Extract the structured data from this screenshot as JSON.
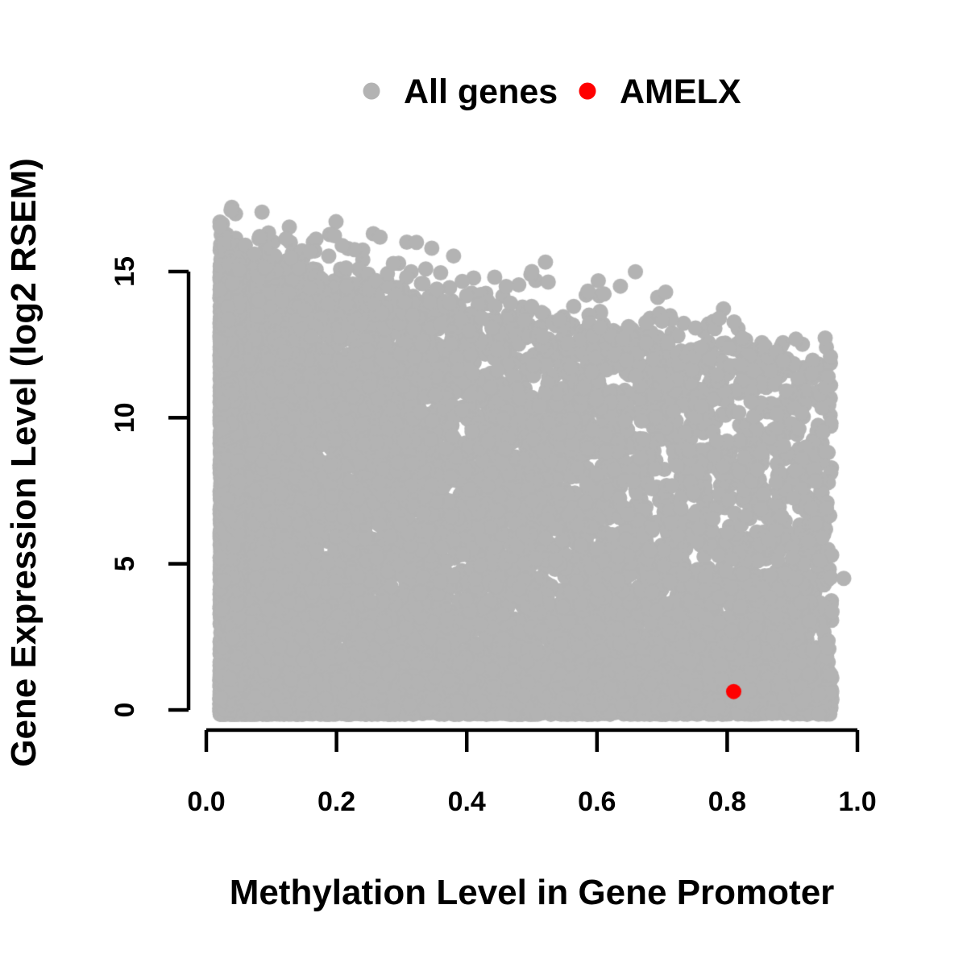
{
  "figure": {
    "background": "#ffffff",
    "legend": {
      "position": "top",
      "entries": [
        {
          "label": "All genes",
          "color": "#b3b3b3"
        },
        {
          "label": "AMELX",
          "color": "#ff0000"
        }
      ]
    },
    "axes": {
      "x": {
        "label": "Methylation Level in Gene Promoter",
        "tick_labels": [
          "0.0",
          "0.2",
          "0.4",
          "0.6",
          "0.8",
          "1.0"
        ],
        "tick_values": [
          0,
          0.2,
          0.4,
          0.6,
          0.8,
          1.0
        ],
        "range": [
          0,
          1
        ]
      },
      "y": {
        "label": "Gene Expression Level (log2 RSEM)",
        "tick_labels": [
          "0",
          "5",
          "10",
          "15"
        ],
        "tick_values": [
          0,
          5,
          10,
          15
        ],
        "range": [
          0,
          15
        ]
      }
    }
  },
  "chart_data": {
    "type": "scatter",
    "title": "",
    "xlabel": "Methylation Level in Gene Promoter",
    "ylabel": "Gene Expression Level (log2 RSEM)",
    "xlim": [
      0,
      1
    ],
    "ylim": [
      -0.2,
      17.5
    ],
    "grid": false,
    "legend_position": "top-center",
    "marker_radius_px": 9.5,
    "series": [
      {
        "name": "All genes",
        "color": "#b3b3b3",
        "marker": "circle",
        "n_points": 13300,
        "distribution": {
          "comment": "dense cloud: x skewed low, y uniform-to-low under a descending upper envelope, solid band at y~0, sparse fringe above envelope",
          "seed": 1337,
          "x_min": 0.021,
          "x_span": 0.94,
          "x_pow": 1.6,
          "envelope_intercept": 15.1,
          "envelope_slope": -3.9,
          "bottom_frac": 0.3,
          "bottom_base": -0.15,
          "bottom_span": 1.5,
          "bottom_pow": 1.4,
          "body_pow_base": 0.75,
          "body_pow_slope": 1.25,
          "fringe_frac": 0.03,
          "fringe_scale": 0.6,
          "fringe_cap": 2.6,
          "left_column_n": 800,
          "left_column_x_min": 0.021,
          "left_column_x_span": 0.03,
          "left_column_top": 15.5,
          "left_column_pow": 0.95,
          "y_min": -0.17,
          "y_max": 17.2
        },
        "outlier_points": [
          [
            0.038,
            17.1
          ],
          [
            0.06,
            15.9
          ],
          [
            0.074,
            15.6
          ],
          [
            0.082,
            16.2
          ],
          [
            0.215,
            13.9
          ],
          [
            0.26,
            14.7
          ],
          [
            0.354,
            14.4
          ],
          [
            0.36,
            13.2
          ],
          [
            0.5,
            15.0
          ],
          [
            0.515,
            13.6
          ],
          [
            0.636,
            14.5
          ],
          [
            0.64,
            12.7
          ],
          [
            0.7,
            13.3
          ],
          [
            0.76,
            12.4
          ],
          [
            0.788,
            13.4
          ],
          [
            0.858,
            12.45
          ],
          [
            0.875,
            12.25
          ],
          [
            0.886,
            11.95
          ],
          [
            0.93,
            11.5
          ],
          [
            0.955,
            11.4
          ],
          [
            0.979,
            4.5
          ]
        ]
      },
      {
        "name": "AMELX",
        "color": "#ff0000",
        "marker": "circle",
        "points": [
          [
            0.81,
            0.63
          ]
        ]
      }
    ]
  }
}
